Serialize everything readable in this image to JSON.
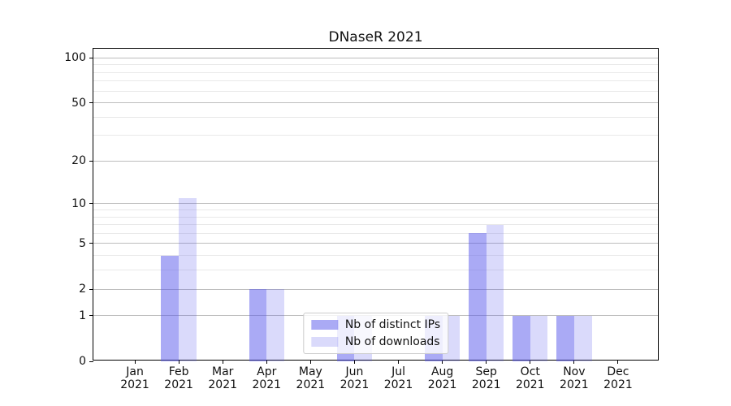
{
  "chart_data": {
    "type": "bar",
    "title": "DNaseR 2021",
    "x_categories": [
      "Jan 2021",
      "Feb 2021",
      "Mar 2021",
      "Apr 2021",
      "May 2021",
      "Jun 2021",
      "Jul 2021",
      "Aug 2021",
      "Sep 2021",
      "Oct 2021",
      "Nov 2021",
      "Dec 2021"
    ],
    "series": [
      {
        "name": "Nb of distinct IPs",
        "color": "rgba(85,85,235,0.5)",
        "values": [
          0,
          4,
          0,
          2,
          0,
          1,
          0,
          1,
          6,
          1,
          1,
          0
        ]
      },
      {
        "name": "Nb of downloads",
        "color": "rgba(85,85,235,0.22)",
        "values": [
          0,
          11,
          0,
          2,
          0,
          1,
          0,
          1,
          7,
          1,
          1,
          0
        ]
      }
    ],
    "y_scale": "log10(1+x)",
    "y_ticks": [
      0,
      1,
      2,
      5,
      10,
      20,
      50,
      100
    ],
    "y_minor_ticks": [
      3,
      4,
      6,
      7,
      8,
      9,
      30,
      40,
      60,
      70,
      80,
      90
    ],
    "y_max": 115,
    "ylim": [
      0,
      115
    ],
    "xlabel": "",
    "ylabel": "",
    "grid": "horizontal",
    "legend_position": "lower center",
    "colors": {
      "bar_base": "#5555eb",
      "major_grid": "#bdbdbd",
      "minor_grid": "#e9e9e9",
      "spine": "#000000",
      "legend_border": "#cccccc"
    }
  }
}
